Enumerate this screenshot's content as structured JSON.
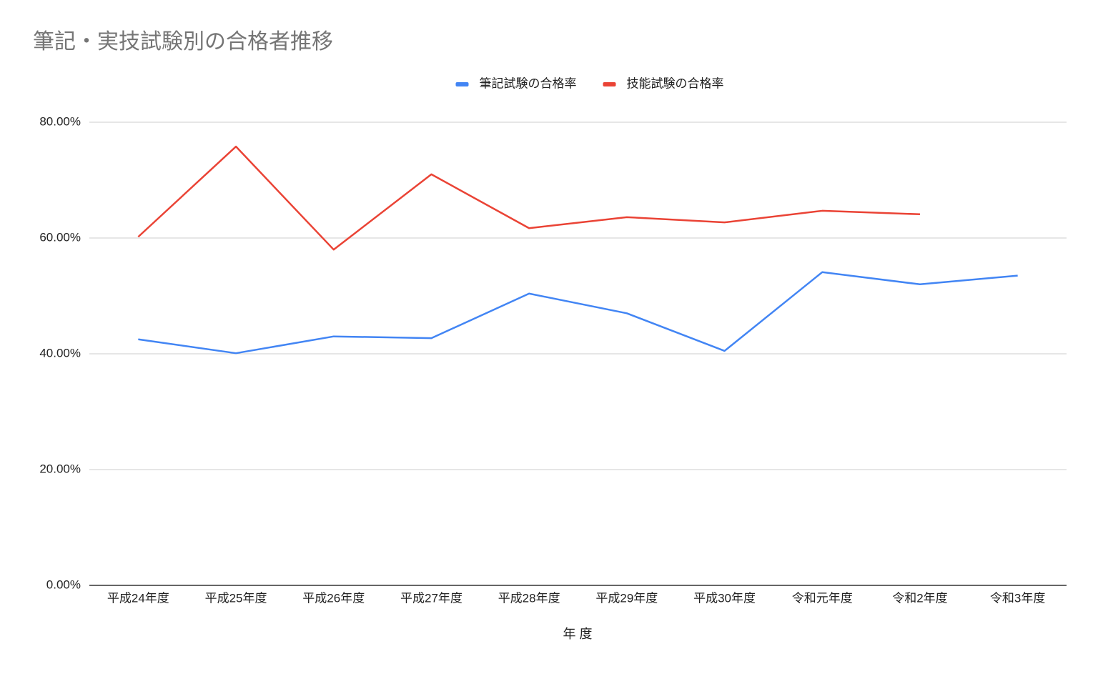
{
  "chart_data": {
    "type": "line",
    "title": "筆記・実技試験別の合格者推移",
    "x_label": "年 度",
    "categories": [
      "平成24年度",
      "平成25年度",
      "平成26年度",
      "平成27年度",
      "平成28年度",
      "平成29年度",
      "平成30年度",
      "令和元年度",
      "令和2年度",
      "令和3年度"
    ],
    "series": [
      {
        "name": "筆記試験の合格率",
        "color": "#4285f4",
        "values": [
          42.5,
          40.1,
          43.0,
          42.7,
          50.4,
          47.0,
          40.5,
          54.1,
          52.0,
          53.5
        ]
      },
      {
        "name": "技能試験の合格率",
        "color": "#ea4335",
        "values": [
          60.2,
          75.8,
          58.0,
          71.0,
          61.7,
          63.6,
          62.7,
          64.7,
          64.1,
          null
        ]
      }
    ],
    "ylim": [
      0,
      80
    ],
    "yticks": [
      {
        "value": 0,
        "label": "0.00%"
      },
      {
        "value": 20,
        "label": "20.00%"
      },
      {
        "value": 40,
        "label": "40.00%"
      },
      {
        "value": 60,
        "label": "60.00%"
      },
      {
        "value": 80,
        "label": "80.00%"
      }
    ],
    "grid": true,
    "legend": "top"
  }
}
